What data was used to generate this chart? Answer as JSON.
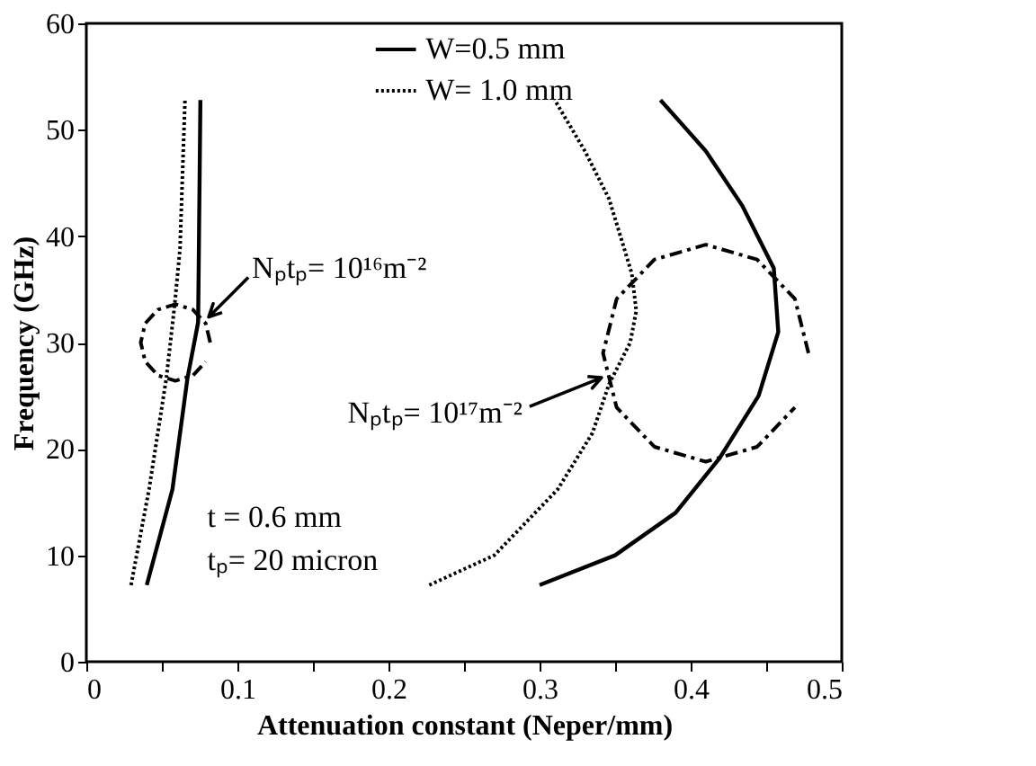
{
  "chart_data": {
    "type": "line",
    "xlabel": "Attenuation constant (Neper/mm)",
    "ylabel": "Frequency (GHz)",
    "xlim": [
      0,
      0.5
    ],
    "xticks": [
      0,
      {
        "value": 0.05,
        "label": null
      },
      0.1,
      {
        "value": 0.15,
        "label": null
      },
      0.2,
      {
        "value": 0.25,
        "label": null
      },
      0.3,
      {
        "value": 0.35,
        "label": null
      },
      0.4,
      {
        "value": 0.45,
        "label": null
      },
      0.5
    ],
    "ylim": [
      0,
      60
    ],
    "yticks": [
      0,
      10,
      20,
      30,
      40,
      50,
      60
    ],
    "grid": false,
    "legend": "top",
    "marker": "none",
    "series": [
      {
        "name": "W=0.5 mm",
        "color": "#000000",
        "line_style": "solid",
        "x": [
          0.04,
          0.057,
          0.067,
          0.074,
          0.0755
        ],
        "values": [
          7.2,
          16.2,
          26.7,
          31.9,
          52.8
        ]
      },
      {
        "name": "W= 1.0 mm",
        "color": "#000000",
        "line_style": "dotted",
        "x": [
          0.0296,
          0.0415,
          0.053,
          0.0585,
          0.062,
          0.0653
        ],
        "values": [
          7.2,
          16.2,
          26.7,
          33.6,
          38.8,
          52.8
        ]
      },
      {
        "color": "#000000",
        "line_style": "solid",
        "x": [
          0.3,
          0.35,
          0.39,
          0.419,
          0.445,
          0.458,
          0.455,
          0.434,
          0.41,
          0.38
        ],
        "values": [
          7.2,
          10,
          14,
          19.1,
          25,
          31,
          37,
          42.9,
          48,
          52.8
        ]
      },
      {
        "color": "#000000",
        "line_style": "dotted",
        "x": [
          0.227,
          0.27,
          0.312,
          0.335,
          0.346,
          0.36,
          0.364,
          0.361,
          0.346,
          0.33,
          0.31
        ],
        "values": [
          7.2,
          10,
          16.2,
          21.5,
          26.1,
          30,
          33,
          36.5,
          43.5,
          48,
          52.8
        ]
      },
      {
        "color": "#000000",
        "line_style": "dashed",
        "x": [
          0.082,
          0.079,
          0.0705,
          0.059,
          0.0475,
          0.039,
          0.036,
          0.039,
          0.0475,
          0.059,
          0.0705,
          0.079
        ],
        "values": [
          30,
          31.8,
          33.1,
          33.6,
          33.1,
          31.8,
          30,
          28.2,
          26.9,
          26.4,
          26.9,
          28.2
        ]
      },
      {
        "color": "#000000",
        "line_style": "dashed",
        "x": [
          0.478,
          0.469,
          0.444,
          0.41,
          0.376,
          0.351,
          0.342,
          0.351,
          0.376,
          0.41,
          0.444,
          0.469
        ],
        "values": [
          29,
          34.1,
          37.8,
          39.2,
          37.8,
          34.1,
          29,
          23.9,
          20.2,
          18.8,
          20.2,
          23.9
        ]
      }
    ],
    "annotations": [
      {
        "text": "Nₚtₚ= 10¹⁶m⁻²",
        "x": 0.081,
        "y": 32.4
      },
      {
        "text": "Nₚtₚ= 10¹⁷m⁻²",
        "x": 0.341,
        "y": 26.7
      },
      "t = 0.6 mm",
      "tₚ= 20 micron"
    ]
  }
}
